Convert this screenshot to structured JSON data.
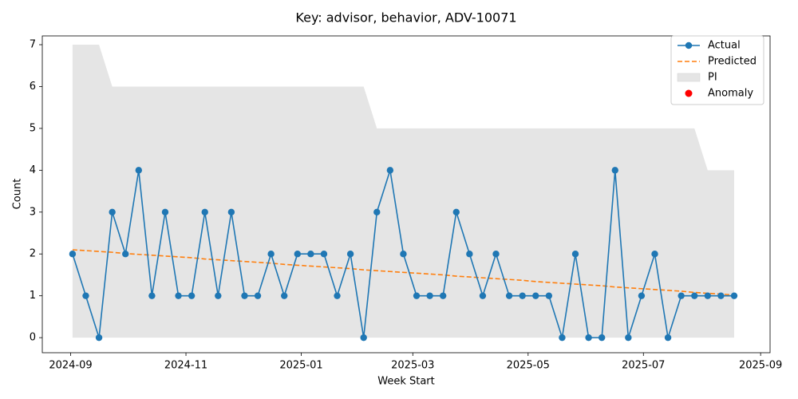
{
  "chart_data": {
    "type": "line",
    "title": "Key: advisor, behavior, ADV-10071",
    "xlabel": "Week Start",
    "ylabel": "Count",
    "x": [
      "2024-09-02",
      "2024-09-09",
      "2024-09-16",
      "2024-09-23",
      "2024-09-30",
      "2024-10-07",
      "2024-10-14",
      "2024-10-21",
      "2024-10-28",
      "2024-11-04",
      "2024-11-11",
      "2024-11-18",
      "2024-11-25",
      "2024-12-02",
      "2024-12-09",
      "2024-12-16",
      "2024-12-23",
      "2024-12-30",
      "2025-01-06",
      "2025-01-13",
      "2025-01-20",
      "2025-01-27",
      "2025-02-03",
      "2025-02-10",
      "2025-02-17",
      "2025-02-24",
      "2025-03-03",
      "2025-03-10",
      "2025-03-17",
      "2025-03-24",
      "2025-03-31",
      "2025-04-07",
      "2025-04-14",
      "2025-04-21",
      "2025-04-28",
      "2025-05-05",
      "2025-05-12",
      "2025-05-19",
      "2025-05-26",
      "2025-06-02",
      "2025-06-09",
      "2025-06-16",
      "2025-06-23",
      "2025-06-30",
      "2025-07-07",
      "2025-07-14",
      "2025-07-21",
      "2025-07-28",
      "2025-08-04",
      "2025-08-11",
      "2025-08-18"
    ],
    "series": [
      {
        "name": "Actual",
        "color": "#1f77b4",
        "marker": true,
        "dashed": false,
        "values": [
          2,
          1,
          0,
          3,
          2,
          4,
          1,
          3,
          1,
          1,
          3,
          1,
          3,
          1,
          1,
          2,
          1,
          2,
          2,
          2,
          1,
          2,
          0,
          3,
          4,
          2,
          1,
          1,
          1,
          3,
          2,
          1,
          2,
          1,
          1,
          1,
          1,
          0,
          2,
          0,
          0,
          4,
          0,
          1,
          2,
          0,
          1,
          1,
          1,
          1,
          1
        ]
      },
      {
        "name": "Predicted",
        "color": "#ff7f0e",
        "marker": false,
        "dashed": true,
        "values": [
          2.1,
          2.08,
          2.06,
          2.04,
          2.01,
          1.99,
          1.97,
          1.95,
          1.93,
          1.91,
          1.88,
          1.86,
          1.84,
          1.82,
          1.8,
          1.78,
          1.75,
          1.73,
          1.71,
          1.69,
          1.67,
          1.65,
          1.62,
          1.6,
          1.58,
          1.56,
          1.54,
          1.52,
          1.5,
          1.47,
          1.45,
          1.43,
          1.41,
          1.39,
          1.37,
          1.34,
          1.32,
          1.3,
          1.28,
          1.26,
          1.24,
          1.21,
          1.19,
          1.17,
          1.15,
          1.13,
          1.11,
          1.08,
          1.06,
          1.04,
          1.02
        ]
      }
    ],
    "band": {
      "name": "PI",
      "color": "#e5e5e5",
      "lower": [
        0,
        0,
        0,
        0,
        0,
        0,
        0,
        0,
        0,
        0,
        0,
        0,
        0,
        0,
        0,
        0,
        0,
        0,
        0,
        0,
        0,
        0,
        0,
        0,
        0,
        0,
        0,
        0,
        0,
        0,
        0,
        0,
        0,
        0,
        0,
        0,
        0,
        0,
        0,
        0,
        0,
        0,
        0,
        0,
        0,
        0,
        0,
        0,
        0,
        0,
        0
      ],
      "upper": [
        7,
        7,
        7,
        6,
        6,
        6,
        6,
        6,
        6,
        6,
        6,
        6,
        6,
        6,
        6,
        6,
        6,
        6,
        6,
        6,
        6,
        6,
        6,
        5,
        5,
        5,
        5,
        5,
        5,
        5,
        5,
        5,
        5,
        5,
        5,
        5,
        5,
        5,
        5,
        5,
        5,
        5,
        5,
        5,
        5,
        5,
        5,
        5,
        4,
        4,
        4
      ]
    },
    "anomalies": {
      "name": "Anomaly",
      "color": "#ff0000",
      "values": [
        null,
        null,
        null,
        null,
        null,
        null,
        null,
        null,
        null,
        null,
        null,
        null,
        null,
        null,
        null,
        null,
        null,
        null,
        null,
        null,
        null,
        null,
        null,
        null,
        null,
        null,
        null,
        null,
        null,
        null,
        null,
        null,
        null,
        null,
        null,
        null,
        null,
        null,
        null,
        null,
        null,
        null,
        null,
        null,
        null,
        null,
        null,
        null,
        null,
        null,
        null
      ]
    },
    "xlim": [
      "2024-08-17",
      "2025-09-06"
    ],
    "xticks": [
      {
        "value": "2024-09-01",
        "label": "2024-09"
      },
      {
        "value": "2024-11-01",
        "label": "2024-11"
      },
      {
        "value": "2025-01-01",
        "label": "2025-01"
      },
      {
        "value": "2025-03-01",
        "label": "2025-03"
      },
      {
        "value": "2025-05-01",
        "label": "2025-05"
      },
      {
        "value": "2025-07-01",
        "label": "2025-07"
      },
      {
        "value": "2025-09-01",
        "label": "2025-09"
      }
    ],
    "ylim": [
      -0.36,
      7.21
    ],
    "yticks": [
      0,
      1,
      2,
      3,
      4,
      5,
      6,
      7
    ],
    "grid": false,
    "legend": "upper right"
  }
}
